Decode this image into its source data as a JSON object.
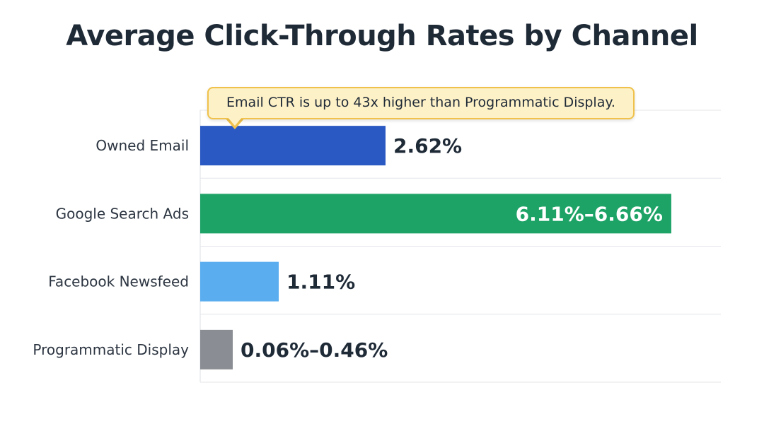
{
  "chart_data": {
    "type": "bar",
    "orientation": "horizontal",
    "title": "Average Click-Through Rates by Channel",
    "categories": [
      "Owned Email",
      "Google Search Ads",
      "Facebook Newsfeed",
      "Programmatic Display"
    ],
    "values": [
      2.62,
      6.66,
      1.11,
      0.46
    ],
    "value_labels": [
      "2.62%",
      "6.11%–6.66%",
      "1.11%",
      "0.06%–0.46%"
    ],
    "colors": [
      "#2b59c3",
      "#1ea367",
      "#5aaef0",
      "#8a8e94"
    ],
    "label_inside": [
      false,
      true,
      false,
      false
    ],
    "xlim": [
      0,
      7
    ],
    "annotation": "Email CTR is up to 43x higher than Programmatic Display.",
    "grid": true
  }
}
